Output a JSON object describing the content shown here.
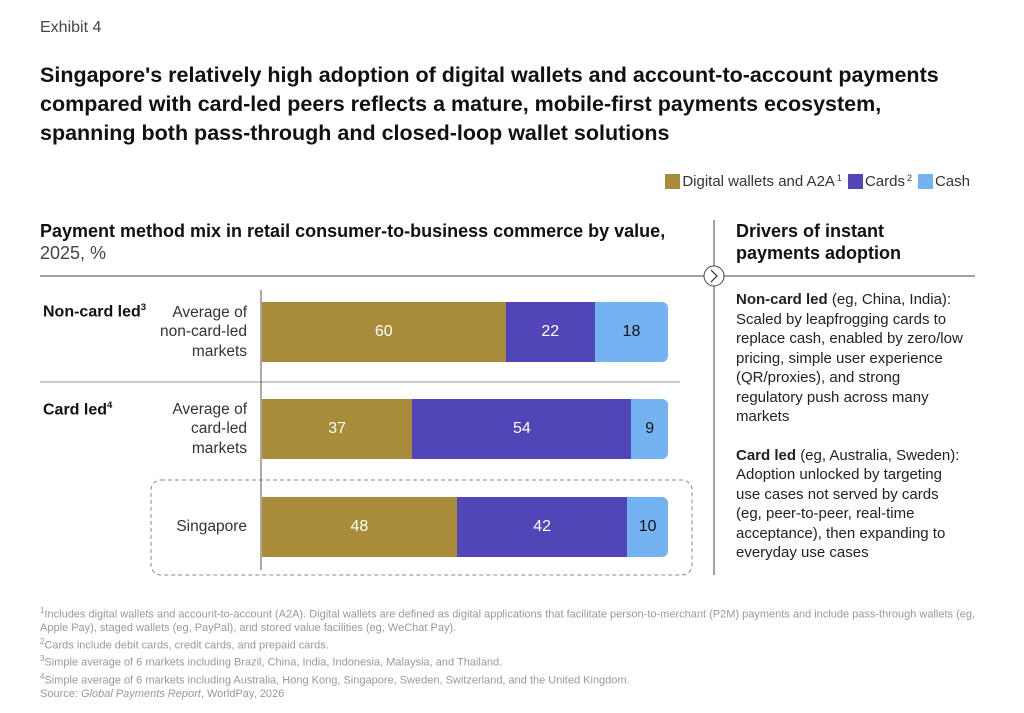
{
  "exhibit": "Exhibit 4",
  "title": "Singapore's relatively high adoption of digital wallets and account-to-account payments compared with card-led peers reflects a mature, mobile-first payments ecosystem, spanning both pass-through and closed-loop wallet solutions",
  "chart_data": {
    "type": "stacked_bar",
    "subtitle": "Payment method mix in retail consumer-to-business commerce by value,",
    "subtitle_unit": "2025, %",
    "groups": [
      {
        "label": "Non-card led",
        "footnote": "3"
      },
      {
        "label": "Card led",
        "footnote": "4"
      }
    ],
    "categories": [
      "Average of non-card-led markets",
      "Average of card-led markets",
      "Singapore"
    ],
    "xlim": [
      0,
      100
    ],
    "series": [
      {
        "name": "Digital wallets and A2A",
        "footnote": "1",
        "color": "#a88c3a",
        "values": [
          60,
          37,
          48
        ]
      },
      {
        "name": "Cards",
        "footnote": "2",
        "color": "#5046b8",
        "values": [
          22,
          54,
          42
        ]
      },
      {
        "name": "Cash",
        "color": "#74b3f2",
        "values": [
          18,
          9,
          10
        ]
      }
    ]
  },
  "drivers": {
    "heading": "Drivers of instant payments adoption",
    "items": [
      {
        "label": "Non-card led",
        "text": "(eg, China, India): Scaled by leapfrogging cards to replace cash, enabled by zero/low pricing, simple user experience (QR/proxies), and strong regulatory push across many markets"
      },
      {
        "label": "Card led",
        "text": "(eg, Australia, Sweden): Adoption unlocked by targeting use cases not served by cards (eg, peer-to-peer, real-time acceptance), then expanding to everyday use cases"
      }
    ]
  },
  "footnotes": [
    {
      "mark": "1",
      "text": "Includes digital wallets and account-to-account (A2A). Digital wallets are defined as digital applications that facilitate person-to-merchant (P2M) payments and include pass-through wallets (eg, Apple Pay), staged wallets (eg, PayPal), and stored value facilities (eg, WeChat Pay)."
    },
    {
      "mark": "2",
      "text": "Cards include debit cards, credit cards, and prepaid cards."
    },
    {
      "mark": "3",
      "text": "Simple average of 6 markets including Brazil, China, India, Indonesia, Malaysia, and Thailand."
    },
    {
      "mark": "4",
      "text": "Simple average of 6 markets including Australia, Hong Kong, Singapore, Sweden, Switzerland, and the United Kingdom."
    }
  ],
  "source": {
    "prefix": "Source:",
    "publication": "Global Payments Report",
    "rest": ", WorldPay, 2026"
  }
}
